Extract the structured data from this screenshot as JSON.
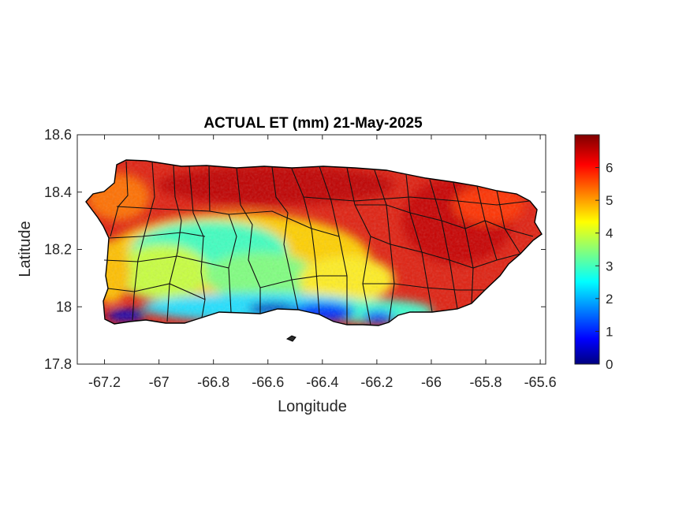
{
  "figure": {
    "title": "ACTUAL ET (mm) 21-May-2025",
    "xlabel": "Longitude",
    "ylabel": "Latitude"
  },
  "map": {
    "region_shape": "Puerto Rico (main island) with municipality boundaries",
    "lon_range": [
      -67.3,
      -65.58
    ],
    "lat_range": [
      17.8,
      18.6
    ],
    "x_ticks": [
      "-67.2",
      "-67",
      "-66.8",
      "-66.6",
      "-66.4",
      "-66.2",
      "-66",
      "-65.8",
      "-65.6"
    ],
    "y_ticks": [
      "18.6",
      "18.4",
      "18.2",
      "18",
      "17.8"
    ],
    "x_tick_values": [
      -67.2,
      -67.0,
      -66.8,
      -66.6,
      -66.4,
      -66.2,
      -66.0,
      -65.8,
      -65.6
    ],
    "y_tick_values": [
      18.6,
      18.4,
      18.2,
      18.0,
      17.8
    ]
  },
  "colorbar": {
    "colormap": "jet",
    "range": [
      0,
      7
    ],
    "ticks": [
      "6",
      "5",
      "4",
      "3",
      "2",
      "1",
      "0"
    ],
    "tick_values": [
      6,
      5,
      4,
      3,
      2,
      1,
      0
    ]
  },
  "colors": {
    "axes": "#262626",
    "border": "#000000",
    "jet_low": "#00007f",
    "jet_high": "#7f0000"
  }
}
